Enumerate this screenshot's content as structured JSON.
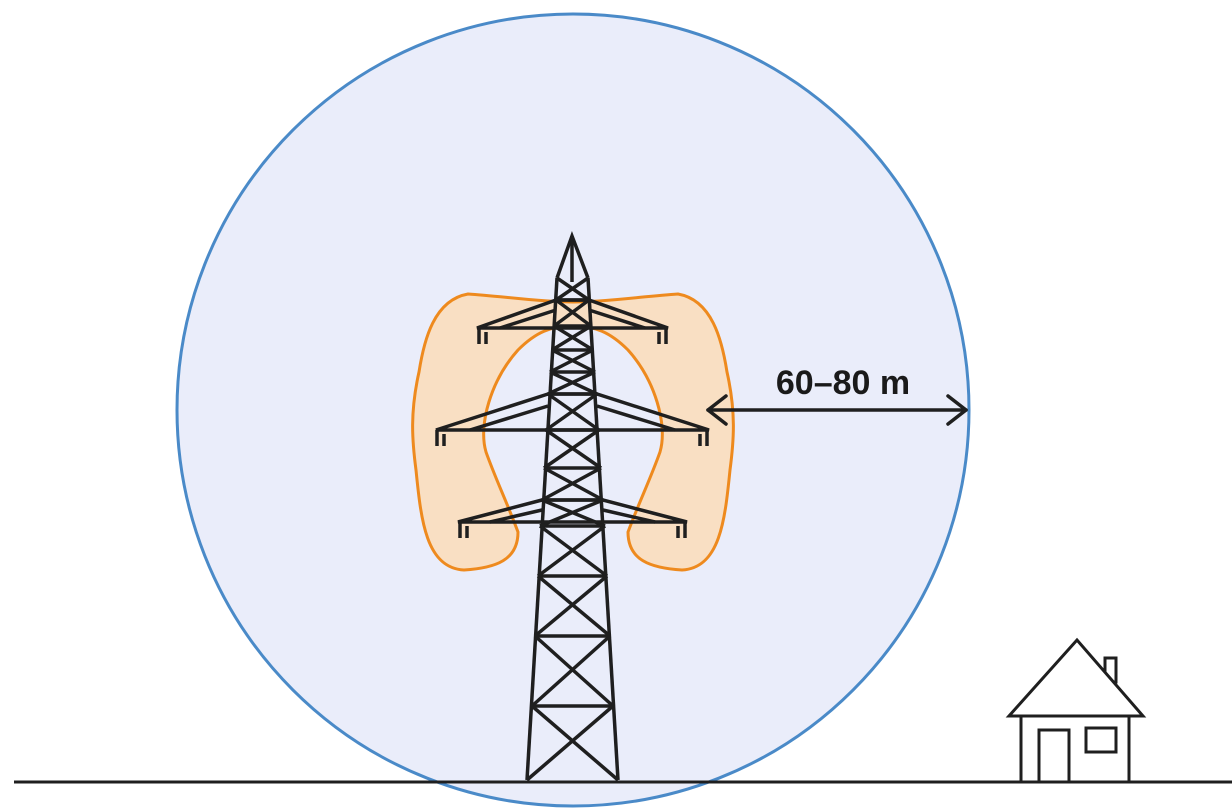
{
  "diagram": {
    "distance_label": "60–80 m",
    "colors": {
      "outer_zone_fill": "#eaedfa",
      "outer_zone_stroke": "#4a8ac8",
      "inner_zone_fill": "#f9dfc3",
      "inner_zone_stroke": "#ee8a1e",
      "structure_stroke": "#1f1f1f",
      "ground_line": "#1f1f1f"
    },
    "icons": [
      "transmission-tower-icon",
      "house-icon",
      "double-arrow-icon"
    ]
  }
}
